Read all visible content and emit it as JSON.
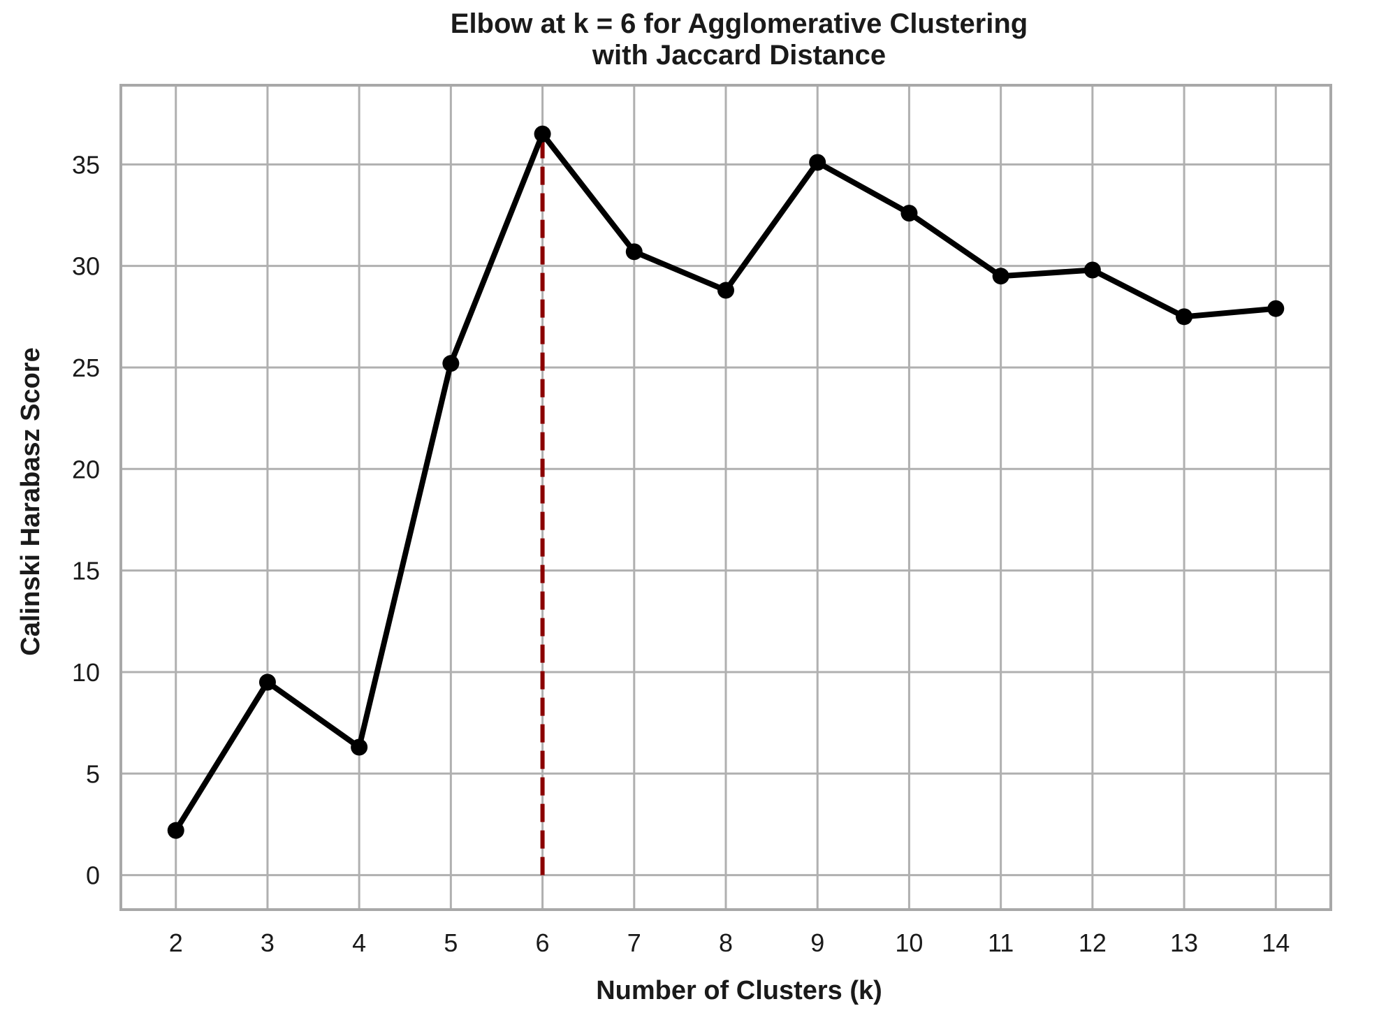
{
  "chart_data": {
    "type": "line",
    "title_lines": [
      "Elbow at k = 6 for Agglomerative Clustering",
      "with Jaccard Distance"
    ],
    "xlabel": "Number of Clusters (k)",
    "ylabel": "Calinski Harabasz Score",
    "x": [
      2,
      3,
      4,
      5,
      6,
      7,
      8,
      9,
      10,
      11,
      12,
      13,
      14
    ],
    "x_tick_labels": [
      "2",
      "3",
      "4",
      "5",
      "6",
      "7",
      "8",
      "9",
      "10",
      "11",
      "12",
      "13",
      "14"
    ],
    "y_ticks": [
      0,
      5,
      10,
      15,
      20,
      25,
      30,
      35
    ],
    "y_tick_labels": [
      "0",
      "5",
      "10",
      "15",
      "20",
      "25",
      "30",
      "35"
    ],
    "xlim": [
      1.4,
      14.6
    ],
    "ylim": [
      -1.7,
      38.9
    ],
    "series": [
      {
        "values": [
          2.2,
          9.5,
          6.3,
          25.2,
          36.5,
          30.7,
          28.8,
          35.1,
          32.6,
          29.5,
          29.8,
          27.5,
          27.9
        ]
      }
    ],
    "elbow_marker": {
      "x": 6,
      "y_from": 0,
      "y_to": 36.5
    },
    "grid": true,
    "colors": {
      "line": "#000000",
      "marker": "#000000",
      "elbow_line": "#8b0000",
      "grid": "#b0b0b0",
      "frame": "#a8a8a8",
      "background": "#ffffff"
    }
  }
}
